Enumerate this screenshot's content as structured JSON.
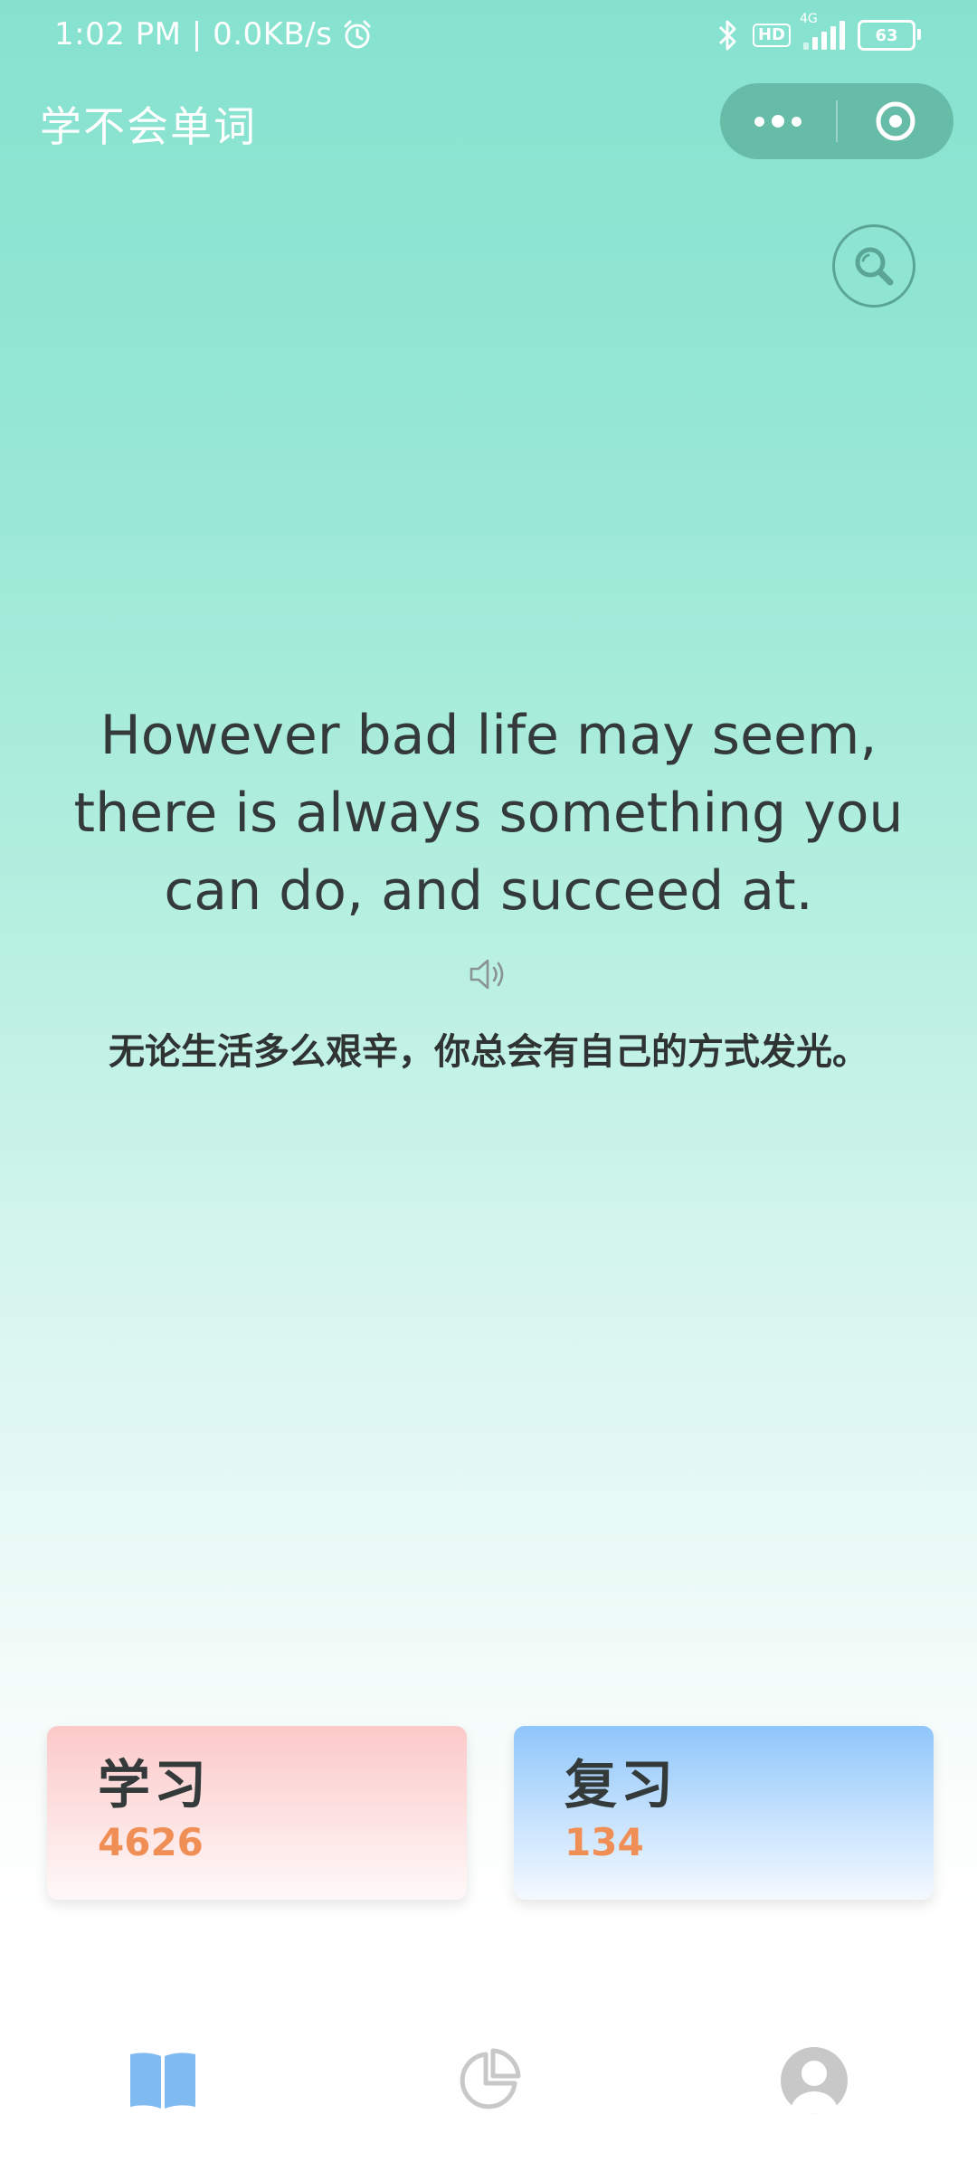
{
  "status_bar": {
    "time_speed": "1:02 PM | 0.0KB/s",
    "hd": "HD",
    "network": "4G",
    "battery": "63"
  },
  "app": {
    "title": "学不会单词"
  },
  "quote": {
    "english": "However bad life may seem, there is always something you can do, and succeed at.",
    "chinese": "无论生活多么艰辛，你总会有自己的方式发光。"
  },
  "cards": {
    "study": {
      "label": "学习",
      "count": "4626"
    },
    "review": {
      "label": "复习",
      "count": "134"
    }
  },
  "icons": {
    "search": "search-icon",
    "speaker": "speaker-icon",
    "learn_tab": "book-icon",
    "stats_tab": "pie-chart-icon",
    "me_tab": "user-icon"
  },
  "colors": {
    "accent": "#7fbbf1",
    "count": "#f08f55",
    "inactive_icon": "#c8c8c8"
  }
}
